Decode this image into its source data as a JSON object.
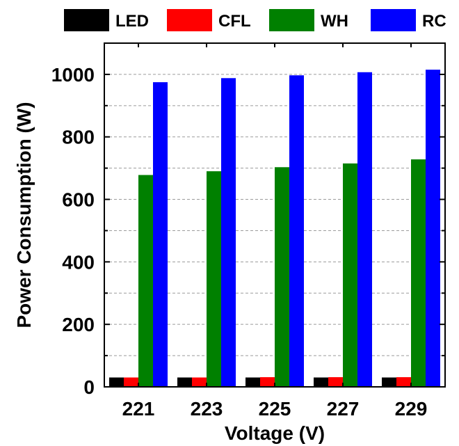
{
  "chart_data": {
    "type": "bar",
    "title": "",
    "xlabel": "Voltage (V)",
    "ylabel": "Power Consumption (W)",
    "categories": [
      "221",
      "223",
      "225",
      "227",
      "229"
    ],
    "yticks": [
      0,
      200,
      400,
      600,
      800,
      1000
    ],
    "ylim": [
      0,
      1100
    ],
    "grid": true,
    "legend_position": "top",
    "series": [
      {
        "name": "LED",
        "color": "#000000",
        "values": [
          30,
          30,
          30,
          30,
          30
        ]
      },
      {
        "name": "CFL",
        "color": "#ff0000",
        "values": [
          30,
          30,
          31,
          31,
          31
        ]
      },
      {
        "name": "WH",
        "color": "#008000",
        "values": [
          678,
          690,
          703,
          715,
          728
        ]
      },
      {
        "name": "RC",
        "color": "#0000ff",
        "values": [
          975,
          988,
          997,
          1007,
          1015
        ]
      }
    ]
  }
}
